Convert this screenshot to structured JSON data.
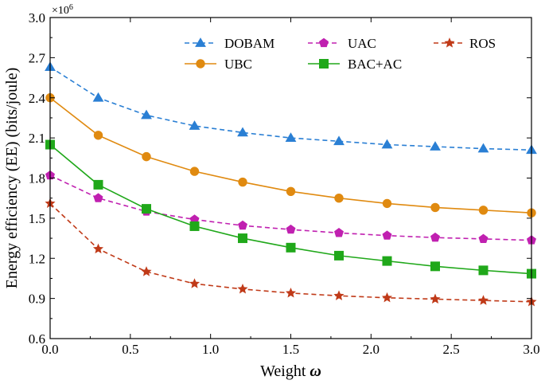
{
  "chart_data": {
    "type": "line",
    "title": "",
    "xlabel": "Weight",
    "xlabel_symbol": "ω",
    "ylabel": "Energy efficiency (EE) (bits/joule)",
    "y_multiplier": "×10",
    "y_multiplier_exp": "6",
    "xlim": [
      0,
      3
    ],
    "ylim": [
      0.6,
      3.0
    ],
    "xticks": [
      "0.0",
      "0.5",
      "1.0",
      "1.5",
      "2.0",
      "2.5",
      "3.0"
    ],
    "yticks": [
      "0.6",
      "0.9",
      "1.2",
      "1.5",
      "1.8",
      "2.1",
      "2.4",
      "2.7",
      "3.0"
    ],
    "grid": false,
    "legend_position": "top-right",
    "x": [
      0,
      0.3,
      0.6,
      0.9,
      1.2,
      1.5,
      1.8,
      2.1,
      2.4,
      2.7,
      3.0
    ],
    "series": [
      {
        "name": "DOBAM",
        "color": "#2a7fd4",
        "dashed": true,
        "marker": "triangle",
        "values": [
          2.63,
          2.4,
          2.27,
          2.19,
          2.14,
          2.1,
          2.075,
          2.05,
          2.035,
          2.02,
          2.01
        ]
      },
      {
        "name": "UAC",
        "color": "#c020b0",
        "dashed": true,
        "marker": "pentagon",
        "values": [
          1.82,
          1.65,
          1.55,
          1.49,
          1.445,
          1.415,
          1.39,
          1.37,
          1.355,
          1.345,
          1.335
        ]
      },
      {
        "name": "ROS",
        "color": "#c03a18",
        "dashed": true,
        "marker": "star",
        "values": [
          1.61,
          1.27,
          1.1,
          1.01,
          0.97,
          0.94,
          0.92,
          0.905,
          0.895,
          0.885,
          0.875
        ]
      },
      {
        "name": "UBC",
        "color": "#e08a10",
        "dashed": false,
        "marker": "circle",
        "values": [
          2.4,
          2.12,
          1.96,
          1.85,
          1.77,
          1.7,
          1.65,
          1.61,
          1.58,
          1.56,
          1.54
        ]
      },
      {
        "name": "BAC+AC",
        "color": "#20a81a",
        "dashed": false,
        "marker": "square",
        "values": [
          2.05,
          1.75,
          1.57,
          1.44,
          1.35,
          1.28,
          1.22,
          1.18,
          1.14,
          1.11,
          1.085
        ]
      }
    ]
  }
}
